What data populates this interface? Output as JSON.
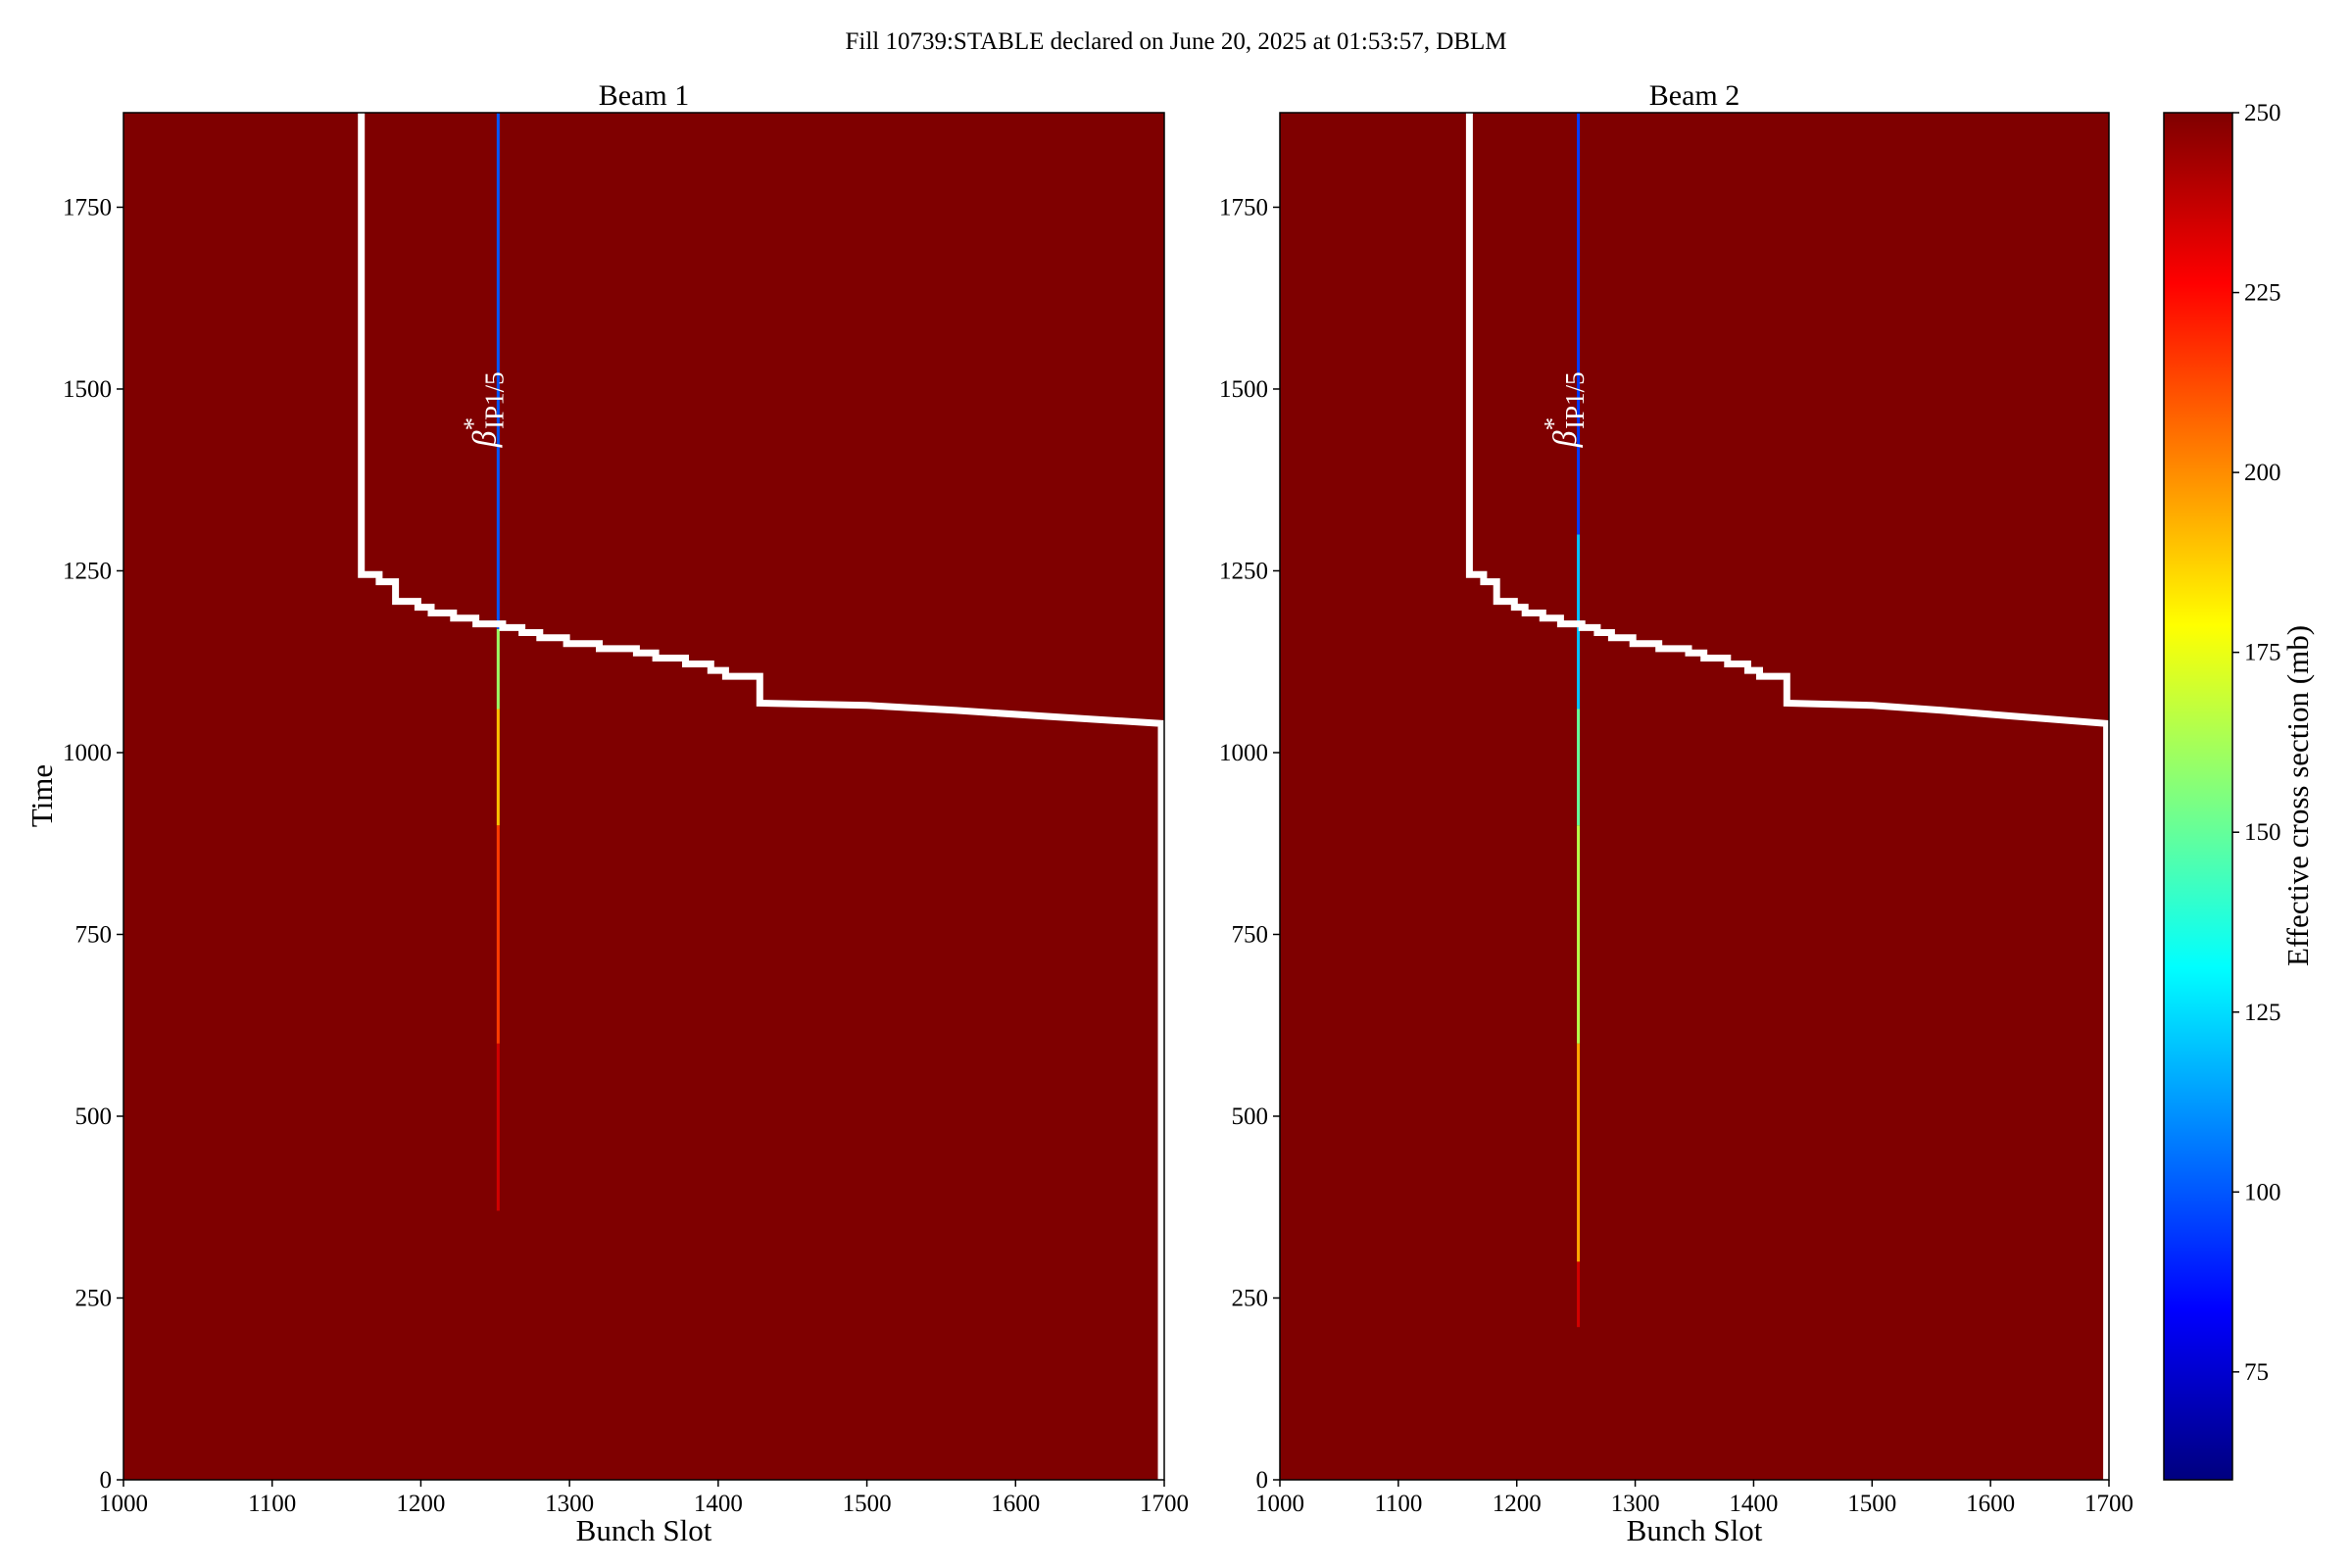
{
  "figure": {
    "suptitle": "Fill 10739:STABLE declared on June 20, 2025 at 01:53:57, DBLM"
  },
  "colors": {
    "background_map": "#7f0000",
    "line": "#ffffff",
    "colormap": [
      "#00007f",
      "#0000ff",
      "#007fff",
      "#00ffff",
      "#7fff7f",
      "#ffff00",
      "#ff7f00",
      "#ff0000",
      "#7f0000"
    ]
  },
  "chart_data": [
    {
      "type": "heatmap",
      "title": "Beam 1",
      "xlabel": "Bunch Slot",
      "ylabel": "Time",
      "xlim": [
        1000,
        1700
      ],
      "ylim": [
        0,
        1880
      ],
      "xticks": [
        1000,
        1100,
        1200,
        1300,
        1400,
        1500,
        1600,
        1700
      ],
      "yticks": [
        0,
        250,
        500,
        750,
        1000,
        1250,
        1500,
        1750
      ],
      "background_value": 250,
      "annotation": {
        "text": "β",
        "superscript": "*",
        "subscript": "IP1/5",
        "x": 1250,
        "y": 1420
      },
      "hot_column": {
        "x": 1252,
        "segments": [
          {
            "y0": 370,
            "y1": 600,
            "value": 235
          },
          {
            "y0": 600,
            "y1": 900,
            "value": 215
          },
          {
            "y0": 900,
            "y1": 1060,
            "value": 190
          },
          {
            "y0": 1060,
            "y1": 1170,
            "value": 160
          },
          {
            "y0": 1170,
            "y1": 1880,
            "value": 100
          }
        ]
      },
      "step_line": [
        [
          1160,
          1880
        ],
        [
          1160,
          1245
        ],
        [
          1172,
          1245
        ],
        [
          1172,
          1235
        ],
        [
          1183,
          1235
        ],
        [
          1183,
          1208
        ],
        [
          1198,
          1208
        ],
        [
          1198,
          1200
        ],
        [
          1207,
          1200
        ],
        [
          1207,
          1192
        ],
        [
          1222,
          1192
        ],
        [
          1222,
          1185
        ],
        [
          1237,
          1185
        ],
        [
          1237,
          1177
        ],
        [
          1255,
          1177
        ],
        [
          1255,
          1172
        ],
        [
          1268,
          1172
        ],
        [
          1268,
          1165
        ],
        [
          1280,
          1165
        ],
        [
          1280,
          1158
        ],
        [
          1298,
          1158
        ],
        [
          1298,
          1150
        ],
        [
          1320,
          1150
        ],
        [
          1320,
          1143
        ],
        [
          1345,
          1143
        ],
        [
          1345,
          1137
        ],
        [
          1358,
          1137
        ],
        [
          1358,
          1130
        ],
        [
          1378,
          1130
        ],
        [
          1378,
          1122
        ],
        [
          1395,
          1122
        ],
        [
          1395,
          1113
        ],
        [
          1405,
          1113
        ],
        [
          1405,
          1105
        ],
        [
          1428,
          1105
        ],
        [
          1428,
          1068
        ],
        [
          1500,
          1065
        ],
        [
          1560,
          1058
        ],
        [
          1620,
          1050
        ],
        [
          1698,
          1040
        ],
        [
          1698,
          0
        ]
      ]
    },
    {
      "type": "heatmap",
      "title": "Beam 2",
      "xlabel": "Bunch Slot",
      "ylabel": "",
      "xlim": [
        1000,
        1700
      ],
      "ylim": [
        0,
        1880
      ],
      "xticks": [
        1000,
        1100,
        1200,
        1300,
        1400,
        1500,
        1600,
        1700
      ],
      "yticks": [
        0,
        250,
        500,
        750,
        1000,
        1250,
        1500,
        1750
      ],
      "background_value": 250,
      "annotation": {
        "text": "β",
        "superscript": "*",
        "subscript": "IP1/5",
        "x": 1250,
        "y": 1420
      },
      "hot_column": {
        "x": 1252,
        "segments": [
          {
            "y0": 210,
            "y1": 300,
            "value": 235
          },
          {
            "y0": 300,
            "y1": 600,
            "value": 195
          },
          {
            "y0": 600,
            "y1": 900,
            "value": 165
          },
          {
            "y0": 900,
            "y1": 1060,
            "value": 150
          },
          {
            "y0": 1060,
            "y1": 1300,
            "value": 120
          },
          {
            "y0": 1300,
            "y1": 1880,
            "value": 95
          }
        ]
      },
      "step_line": [
        [
          1160,
          1880
        ],
        [
          1160,
          1245
        ],
        [
          1172,
          1245
        ],
        [
          1172,
          1235
        ],
        [
          1183,
          1235
        ],
        [
          1183,
          1208
        ],
        [
          1198,
          1208
        ],
        [
          1198,
          1200
        ],
        [
          1207,
          1200
        ],
        [
          1207,
          1192
        ],
        [
          1222,
          1192
        ],
        [
          1222,
          1185
        ],
        [
          1237,
          1185
        ],
        [
          1237,
          1177
        ],
        [
          1255,
          1177
        ],
        [
          1255,
          1172
        ],
        [
          1268,
          1172
        ],
        [
          1268,
          1165
        ],
        [
          1280,
          1165
        ],
        [
          1280,
          1158
        ],
        [
          1298,
          1158
        ],
        [
          1298,
          1150
        ],
        [
          1320,
          1150
        ],
        [
          1320,
          1143
        ],
        [
          1345,
          1143
        ],
        [
          1345,
          1137
        ],
        [
          1358,
          1137
        ],
        [
          1358,
          1130
        ],
        [
          1378,
          1130
        ],
        [
          1378,
          1122
        ],
        [
          1395,
          1122
        ],
        [
          1395,
          1113
        ],
        [
          1405,
          1113
        ],
        [
          1405,
          1105
        ],
        [
          1428,
          1105
        ],
        [
          1428,
          1068
        ],
        [
          1500,
          1065
        ],
        [
          1560,
          1058
        ],
        [
          1620,
          1050
        ],
        [
          1698,
          1040
        ],
        [
          1698,
          0
        ]
      ]
    }
  ],
  "colorbar": {
    "label": "Effective cross section (mb)",
    "range": [
      60,
      250
    ],
    "ticks": [
      75,
      100,
      125,
      150,
      175,
      200,
      225,
      250
    ]
  }
}
